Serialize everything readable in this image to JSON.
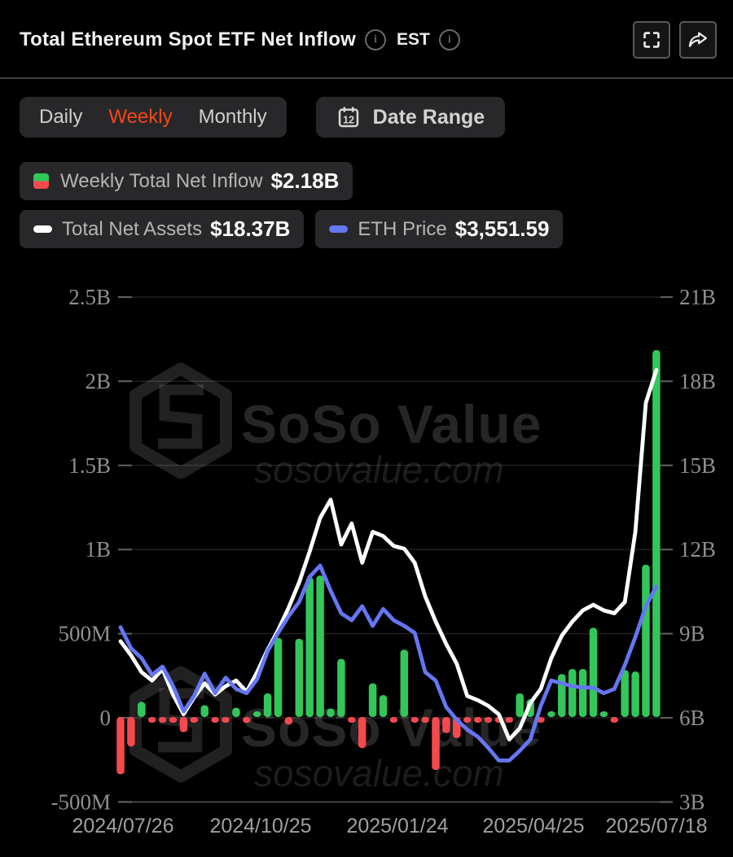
{
  "header": {
    "title": "Total Ethereum Spot ETF Net Inflow",
    "timezone": "EST"
  },
  "controls": {
    "tabs": [
      "Daily",
      "Weekly",
      "Monthly"
    ],
    "active_tab": "Weekly",
    "date_range": "Date Range",
    "calendar_day": "12"
  },
  "legend": {
    "inflow_label": "Weekly Total Net Inflow",
    "inflow_value": "$2.18B",
    "assets_label": "Total Net Assets",
    "assets_value": "$18.37B",
    "eth_label": "ETH Price",
    "eth_value": "$3,551.59"
  },
  "watermark": {
    "brand": "SoSo Value",
    "domain": "sosovalue.com"
  },
  "colors": {
    "positive": "#33c659",
    "negative": "#f4494f",
    "assets_line": "#ffffff",
    "eth_line": "#6576f3",
    "accent_orange": "#f4471b"
  },
  "chart_data": {
    "type": "combo",
    "weeks": 52,
    "x_tick_labels": [
      "2024/07/26",
      "2024/10/25",
      "2025/01/24",
      "2025/04/25",
      "2025/07/18"
    ],
    "left_axis": {
      "tick_labels": [
        "2.5B",
        "2B",
        "1.5B",
        "1B",
        "500M",
        "0",
        "-500M"
      ],
      "tick_values_M": [
        2500,
        2000,
        1500,
        1000,
        500,
        0,
        -500
      ],
      "range_M": [
        -500,
        2500
      ]
    },
    "right_axis": {
      "tick_labels": [
        "21B",
        "18B",
        "15B",
        "12B",
        "9B",
        "6B",
        "3B"
      ],
      "tick_values_B": [
        21,
        18,
        15,
        12,
        9,
        6,
        3
      ],
      "range_B": [
        3,
        21
      ]
    },
    "series": [
      {
        "name": "Weekly Total Net Inflow",
        "type": "bar",
        "axis": "left",
        "unit": "million USD",
        "current": "$2.18B",
        "values_M": [
          -340,
          -175,
          90,
          -20,
          -25,
          -10,
          -90,
          -30,
          70,
          -20,
          -25,
          55,
          -35,
          25,
          140,
          470,
          -45,
          465,
          830,
          840,
          50,
          345,
          -30,
          -185,
          200,
          130,
          -30,
          400,
          -25,
          -20,
          -315,
          -95,
          -125,
          -30,
          -25,
          -30,
          -25,
          -30,
          140,
          105,
          -25,
          25,
          255,
          285,
          285,
          530,
          20,
          -20,
          280,
          270,
          905,
          2180
        ]
      },
      {
        "name": "Total Net Assets",
        "type": "line",
        "axis": "right",
        "unit": "billion USD",
        "current": "$18.37B",
        "values_B": [
          8.7,
          8.2,
          7.6,
          7.3,
          7.7,
          6.8,
          6.1,
          6.7,
          7.2,
          6.8,
          7.1,
          7.3,
          6.9,
          7.6,
          8.4,
          9.1,
          9.9,
          10.8,
          11.9,
          13.1,
          13.75,
          12.15,
          12.9,
          11.5,
          12.6,
          12.45,
          12.1,
          12.0,
          11.5,
          10.3,
          9.4,
          8.6,
          7.9,
          6.75,
          6.6,
          6.4,
          6.1,
          5.2,
          5.6,
          6.5,
          7.0,
          8.1,
          8.9,
          9.4,
          9.8,
          10.0,
          9.8,
          9.7,
          10.1,
          12.6,
          17.2,
          18.37
        ]
      },
      {
        "name": "ETH Price",
        "type": "line",
        "axis": "hidden-price-axis",
        "current": "$3,551.59",
        "note": "price scale not shown; values are right-axis visual equivalents read from pixels",
        "values_B_equivalent": [
          9.2,
          8.45,
          8.1,
          7.5,
          7.8,
          7.1,
          6.2,
          6.75,
          7.55,
          6.85,
          7.4,
          7.0,
          6.85,
          7.35,
          8.35,
          9.0,
          9.6,
          10.1,
          11.0,
          11.4,
          10.5,
          9.7,
          9.45,
          9.95,
          9.25,
          9.85,
          9.45,
          9.25,
          9.0,
          7.6,
          7.3,
          6.35,
          5.9,
          5.55,
          5.3,
          4.9,
          4.45,
          4.45,
          4.8,
          5.2,
          6.4,
          7.3,
          7.2,
          7.1,
          7.05,
          7.05,
          6.85,
          7.0,
          7.85,
          8.85,
          9.95,
          10.65
        ]
      }
    ],
    "grid": "horizontal only",
    "legend_position": "top-left pills"
  }
}
